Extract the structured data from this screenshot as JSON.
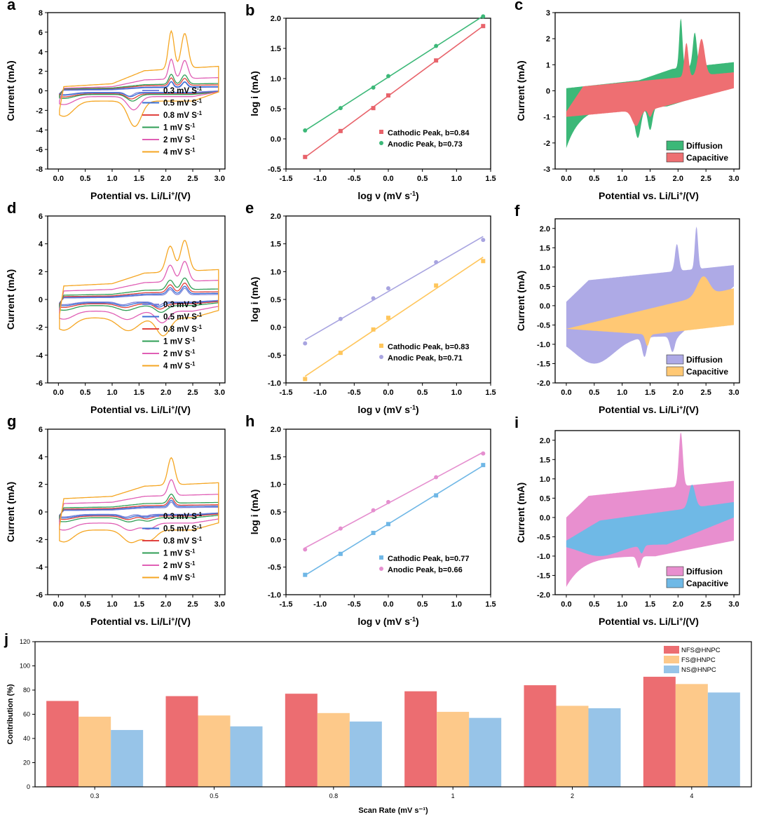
{
  "colors": {
    "red": "#e8636b",
    "orange": "#f5a623",
    "green": "#3cb878",
    "blue": "#3a7bd5",
    "pink": "#e05fb5",
    "lavender": "#a8a4e0",
    "lightorange": "#ffc870",
    "lightblue": "#70b9e6",
    "bar_nfs": "#ec6d71",
    "bar_fs": "#fdc98a",
    "bar_ns": "#97c4e8"
  },
  "panels": {
    "a": {
      "letter": "a"
    },
    "b": {
      "letter": "b"
    },
    "c": {
      "letter": "c"
    },
    "d": {
      "letter": "d"
    },
    "e": {
      "letter": "e"
    },
    "f": {
      "letter": "f"
    },
    "g": {
      "letter": "g"
    },
    "h": {
      "letter": "h"
    },
    "i": {
      "letter": "i"
    },
    "j": {
      "letter": "j"
    }
  },
  "labels": {
    "cv_ylabel": "Current (mA)",
    "potential_prefix": "Potential vs. Li/Li",
    "potential_sup": "+",
    "potential_suffix": "/(V)",
    "logi": "log i (mA)",
    "logv_prefix": "log ν (mV s",
    "logv_sup": "-1",
    "logv_suffix": ")",
    "scan_legend_suffix": "mV S",
    "scan_legend_sup": "-1",
    "j_ylabel": "Contribution (%)",
    "j_xlabel": "Scan Rate (mV s⁻¹)"
  },
  "chart_data": [
    {
      "panel": "a",
      "type": "line",
      "xlabel": "Potential vs. Li/Li+/(V)",
      "ylabel": "Current (mA)",
      "xlim": [
        -0.2,
        3.1
      ],
      "ylim": [
        -8,
        8
      ],
      "xticks": [
        "0.0",
        "0.5",
        "1.0",
        "1.5",
        "2.0",
        "2.5",
        "3.0"
      ],
      "yticks": [
        "-8",
        "-6",
        "-4",
        "-2",
        "0",
        "2",
        "4",
        "6",
        "8"
      ],
      "legend": [
        "0.3 mV S-1",
        "0.5 mV S-1",
        "0.8 mV S-1",
        "1 mV S-1",
        "2 mV S-1",
        "4 mV S-1"
      ],
      "scale": [
        1.0,
        0.95,
        1.3,
        1.7,
        3.4,
        6.5
      ],
      "peaks": [
        {
          "v": 2.1,
          "h": 0.6,
          "w": 0.05
        },
        {
          "v": 2.35,
          "h": 0.55,
          "w": 0.06
        }
      ],
      "cpeaks": [
        {
          "v": 1.32,
          "h": 0.4,
          "w": 0.1
        }
      ],
      "base": [
        0.05,
        0.12,
        0.18,
        0.2,
        0.25,
        0.4
      ]
    },
    {
      "panel": "b",
      "type": "scatter",
      "xlabel": "log ν (mV s-1)",
      "ylabel": "log i (mA)",
      "xlim": [
        -1.5,
        1.5
      ],
      "ylim": [
        -0.5,
        2.0
      ],
      "xticks": [
        "-1.5",
        "-1.0",
        "-0.5",
        "0.0",
        "0.5",
        "1.0",
        "1.5"
      ],
      "yticks": [
        "-0.5",
        "0.0",
        "0.5",
        "1.0",
        "1.5",
        "2.0"
      ],
      "series": [
        {
          "name": "Cathodic Peak, b=0.84",
          "x": [
            -1.22,
            -0.7,
            -0.22,
            0.0,
            0.7,
            1.39
          ],
          "y": [
            -0.3,
            0.13,
            0.51,
            0.72,
            1.3,
            1.87
          ]
        },
        {
          "name": "Anodic Peak, b=0.73",
          "x": [
            -1.22,
            -0.7,
            -0.22,
            0.0,
            0.7,
            1.39
          ],
          "y": [
            0.14,
            0.51,
            0.85,
            1.04,
            1.54,
            2.03
          ]
        }
      ]
    },
    {
      "panel": "c",
      "type": "area",
      "xlabel": "Potential vs. Li/Li+/(V)",
      "ylabel": "Current (mA)",
      "xlim": [
        -0.2,
        3.1
      ],
      "ylim": [
        -3,
        3
      ],
      "xticks": [
        "0.0",
        "0.5",
        "1.0",
        "1.5",
        "2.0",
        "2.5",
        "3.0"
      ],
      "yticks": [
        "-3",
        "-2",
        "-1",
        "0",
        "1",
        "2",
        "3"
      ],
      "series": [
        {
          "name": "Diffusion"
        },
        {
          "name": "Capacitive"
        }
      ]
    },
    {
      "panel": "d",
      "type": "line",
      "xlabel": "Potential vs. Li/Li+/(V)",
      "ylabel": "Current (mA)",
      "xlim": [
        -0.2,
        3.1
      ],
      "ylim": [
        -6,
        6
      ],
      "xticks": [
        "0.0",
        "0.5",
        "1.0",
        "1.5",
        "2.0",
        "2.5",
        "3.0"
      ],
      "yticks": [
        "-6",
        "-4",
        "-2",
        "0",
        "2",
        "4",
        "6"
      ],
      "legend": [
        "0.3 mV S-1",
        "0.5 mV S-1",
        "0.8 mV S-1",
        "1 mV S-1",
        "2 mV S-1",
        "4 mV S-1"
      ],
      "scale": [
        0.8,
        0.9,
        1.1,
        1.4,
        2.4,
        3.7
      ],
      "peaks": [
        {
          "v": 2.08,
          "h": 0.5,
          "w": 0.07
        },
        {
          "v": 2.35,
          "h": 0.6,
          "w": 0.07
        }
      ],
      "cpeaks": [
        {
          "v": 1.2,
          "h": 0.25,
          "w": 0.15
        },
        {
          "v": 1.85,
          "h": 0.35,
          "w": 0.1
        }
      ],
      "base": [
        0.1,
        0.15,
        0.2,
        0.3,
        0.6,
        0.95
      ]
    },
    {
      "panel": "e",
      "type": "scatter",
      "xlabel": "log ν (mV s-1)",
      "ylabel": "log i (mA)",
      "xlim": [
        -1.5,
        1.5
      ],
      "ylim": [
        -1.0,
        2.0
      ],
      "xticks": [
        "-1.5",
        "-1.0",
        "-0.5",
        "0.0",
        "0.5",
        "1.0",
        "1.5"
      ],
      "yticks": [
        "-1.0",
        "-0.5",
        "0.0",
        "0.5",
        "1.0",
        "1.5",
        "2.0"
      ],
      "series": [
        {
          "name": "Cathodic Peak, b=0.83",
          "x": [
            -1.22,
            -0.7,
            -0.22,
            0.0,
            0.7,
            1.39
          ],
          "y": [
            -0.93,
            -0.46,
            -0.04,
            0.17,
            0.75,
            1.19
          ]
        },
        {
          "name": "Anodic Peak, b=0.71",
          "x": [
            -1.22,
            -0.7,
            -0.22,
            0.0,
            0.7,
            1.39
          ],
          "y": [
            -0.29,
            0.15,
            0.52,
            0.7,
            1.17,
            1.57
          ]
        }
      ]
    },
    {
      "panel": "f",
      "type": "area",
      "xlabel": "Potential vs. Li/Li+/(V)",
      "ylabel": "Current (mA)",
      "xlim": [
        -0.2,
        3.1
      ],
      "ylim": [
        -2.0,
        2.25
      ],
      "xticks": [
        "0.0",
        "0.5",
        "1.0",
        "1.5",
        "2.0",
        "2.5",
        "3.0"
      ],
      "yticks": [
        "-2.0",
        "-1.5",
        "-1.0",
        "-0.5",
        "0.0",
        "0.5",
        "1.0",
        "1.5",
        "2.0"
      ],
      "series": [
        {
          "name": "Diffusion"
        },
        {
          "name": "Capacitive"
        }
      ]
    },
    {
      "panel": "g",
      "type": "line",
      "xlabel": "Potential vs. Li/Li+/(V)",
      "ylabel": "Current (mA)",
      "xlim": [
        -0.2,
        3.1
      ],
      "ylim": [
        -6,
        6
      ],
      "xticks": [
        "0.0",
        "0.5",
        "1.0",
        "1.5",
        "2.0",
        "2.5",
        "3.0"
      ],
      "yticks": [
        "-6",
        "-4",
        "-2",
        "0",
        "2",
        "4",
        "6"
      ],
      "legend": [
        "0.3 mV S-1",
        "0.5 mV S-1",
        "0.8 mV S-1",
        "1 mV S-1",
        "2 mV S-1",
        "4 mV S-1"
      ],
      "scale": [
        0.75,
        0.85,
        1.0,
        1.2,
        2.1,
        3.6
      ],
      "peaks": [
        {
          "v": 2.1,
          "h": 0.55,
          "w": 0.06
        }
      ],
      "cpeaks": [
        {
          "v": 1.25,
          "h": 0.25,
          "w": 0.12
        },
        {
          "v": 1.6,
          "h": 0.2,
          "w": 0.1
        }
      ],
      "base": [
        0.1,
        0.15,
        0.2,
        0.3,
        0.6,
        0.95
      ]
    },
    {
      "panel": "h",
      "type": "scatter",
      "xlabel": "log ν (mV s-1)",
      "ylabel": "log i (mA)",
      "xlim": [
        -1.5,
        1.5
      ],
      "ylim": [
        -1.0,
        2.0
      ],
      "xticks": [
        "-1.5",
        "-1.0",
        "-0.5",
        "0.0",
        "0.5",
        "1.0",
        "1.5"
      ],
      "yticks": [
        "-1.0",
        "-0.5",
        "0.0",
        "0.5",
        "1.0",
        "1.5",
        "2.0"
      ],
      "series": [
        {
          "name": "Cathodic Peak, b=0.77",
          "x": [
            -1.22,
            -0.7,
            -0.22,
            0.0,
            0.7,
            1.39
          ],
          "y": [
            -0.64,
            -0.26,
            0.12,
            0.28,
            0.8,
            1.35
          ]
        },
        {
          "name": "Anodic Peak, b=0.66",
          "x": [
            -1.22,
            -0.7,
            -0.22,
            0.0,
            0.7,
            1.39
          ],
          "y": [
            -0.18,
            0.2,
            0.53,
            0.68,
            1.13,
            1.56
          ]
        }
      ]
    },
    {
      "panel": "i",
      "type": "area",
      "xlabel": "Potential vs. Li/Li+/(V)",
      "ylabel": "Current (mA)",
      "xlim": [
        -0.2,
        3.1
      ],
      "ylim": [
        -2.0,
        2.25
      ],
      "xticks": [
        "0.0",
        "0.5",
        "1.0",
        "1.5",
        "2.0",
        "2.5",
        "3.0"
      ],
      "yticks": [
        "-2.0",
        "-1.5",
        "-1.0",
        "-0.5",
        "0.0",
        "0.5",
        "1.0",
        "1.5",
        "2.0"
      ],
      "series": [
        {
          "name": "Diffusion"
        },
        {
          "name": "Capacitive"
        }
      ]
    },
    {
      "panel": "j",
      "type": "bar",
      "xlabel": "Scan Rate (mV s-1)",
      "ylabel": "Contribution (%)",
      "ylim": [
        0,
        120
      ],
      "categories": [
        "0.3",
        "0.5",
        "0.8",
        "1",
        "2",
        "4"
      ],
      "yticks": [
        "0",
        "20",
        "40",
        "60",
        "80",
        "100",
        "120"
      ],
      "series": [
        {
          "name": "NFS@HNPC",
          "values": [
            71,
            75,
            77,
            79,
            84,
            91
          ]
        },
        {
          "name": "FS@HNPC",
          "values": [
            58,
            59,
            61,
            62,
            67,
            85
          ]
        },
        {
          "name": "NS@HNPC",
          "values": [
            47,
            50,
            54,
            57,
            65,
            78
          ]
        }
      ]
    }
  ]
}
